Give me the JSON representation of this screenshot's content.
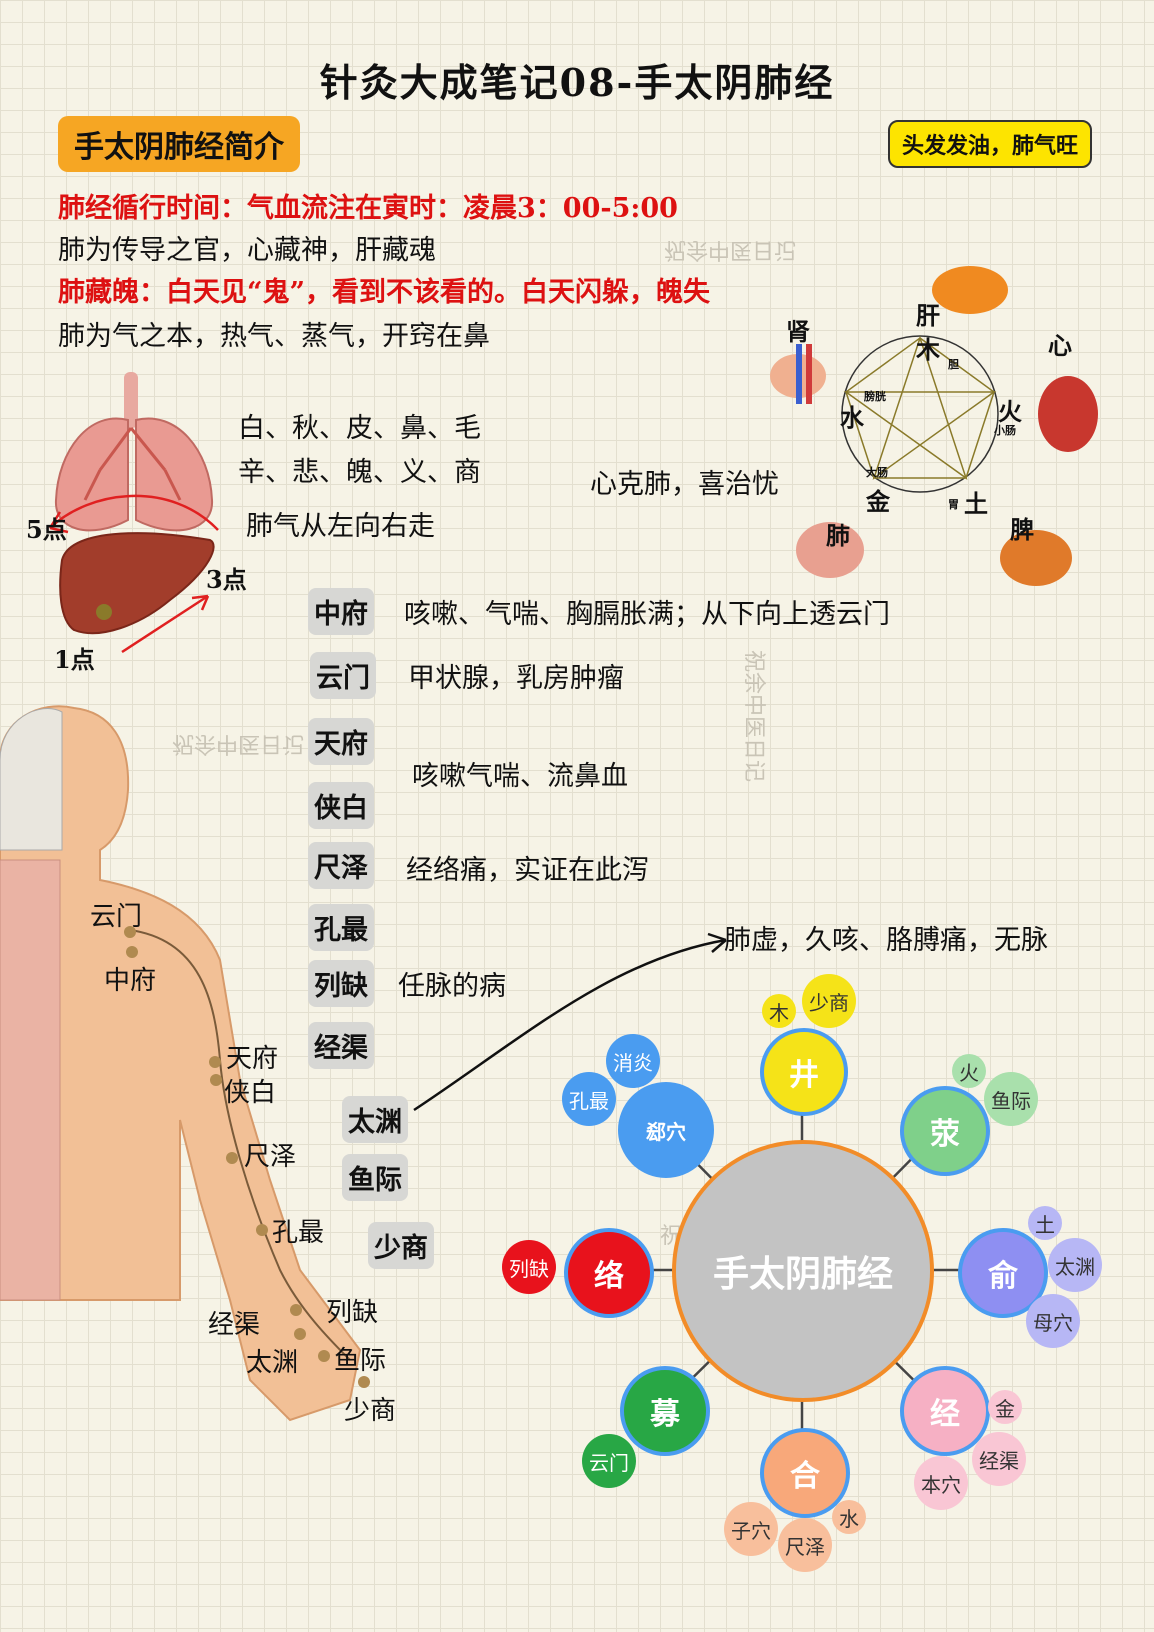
{
  "title": "针灸大成笔记08-手太阴肺经",
  "section_title": "手太阴肺经简介",
  "hair_tag": "头发发油，肺气旺",
  "lines": {
    "time": "肺经循行时间：气血流注在寅时：凌晨3：00-5:00",
    "guan": "肺为传导之官，心藏神，肝藏魂",
    "po": "肺藏魄：白天见“鬼”，看到不该看的。白天闪躲，魄失",
    "qi": "肺为气之本，热气、蒸气，开窍在鼻"
  },
  "correspondences": {
    "row1": "白、秋、皮、鼻、毛",
    "row2": "辛、悲、魄、义、商",
    "flow": "肺气从左向右走",
    "restrain": "心克肺，喜治忧"
  },
  "lung_points": {
    "p5": "5点",
    "p3": "3点",
    "p1": "1点"
  },
  "five_elements": {
    "organs": {
      "liver": "肝",
      "heart": "心",
      "spleen": "脾",
      "lung": "肺",
      "kidney": "肾"
    },
    "elements": {
      "wood": "木",
      "fire": "火",
      "earth": "土",
      "metal": "金",
      "water": "水"
    },
    "fu": {
      "gallbladder": "胆",
      "small_intestine": "小肠",
      "stomach": "胃",
      "large_intestine": "大肠",
      "bladder": "膀胱"
    }
  },
  "acupoints": [
    {
      "name": "中府",
      "note": "咳嗽、气喘、胸膈胀满；从下向上透云门"
    },
    {
      "name": "云门",
      "note": "甲状腺，乳房肿瘤"
    },
    {
      "name": "天府",
      "note": ""
    },
    {
      "name": "侠白",
      "note": ""
    },
    {
      "name": "尺泽",
      "note": "经络痛，实证在此泻"
    },
    {
      "name": "孔最",
      "note": ""
    },
    {
      "name": "列缺",
      "note": "任脉的病"
    },
    {
      "name": "经渠",
      "note": ""
    },
    {
      "name": "太渊",
      "note": ""
    },
    {
      "name": "鱼际",
      "note": ""
    },
    {
      "name": "少商",
      "note": ""
    }
  ],
  "shared_note": "咳嗽气喘、流鼻血",
  "taiyuan_note": "肺虚，久咳、胳膊痛，无脉",
  "body_labels": [
    "云门",
    "中府",
    "天府",
    "侠白",
    "尺泽",
    "孔最",
    "列缺",
    "经渠",
    "太渊",
    "鱼际",
    "少商"
  ],
  "watermark": "祝余中医日记",
  "mindmap": {
    "center": "手太阴肺经",
    "nodes": {
      "jing_well": {
        "label": "井",
        "subs": [
          "木",
          "少商"
        ]
      },
      "ying": {
        "label": "荥",
        "subs": [
          "火",
          "鱼际"
        ]
      },
      "shu": {
        "label": "俞",
        "subs": [
          "土",
          "太渊",
          "母穴"
        ]
      },
      "jing_river": {
        "label": "经",
        "subs": [
          "金",
          "经渠",
          "本穴"
        ]
      },
      "he": {
        "label": "合",
        "subs": [
          "子穴",
          "尺泽",
          "水"
        ]
      },
      "mu": {
        "label": "募",
        "subs": [
          "云门"
        ]
      },
      "luo": {
        "label": "络",
        "subs": [
          "列缺"
        ]
      },
      "xi": {
        "label": "郄穴",
        "subs": [
          "消炎",
          "孔最"
        ]
      }
    },
    "colors": {
      "center": "#c3c3c3",
      "center_ring": "#f28c28",
      "jing_well": "#f5e318",
      "ying": "#7fd08a",
      "shu": "#8e8ff2",
      "jing_river": "#f6b0c4",
      "he": "#f8a87a",
      "mu": "#28a745",
      "luo": "#e8121c",
      "xi": "#4a9cf0"
    }
  }
}
